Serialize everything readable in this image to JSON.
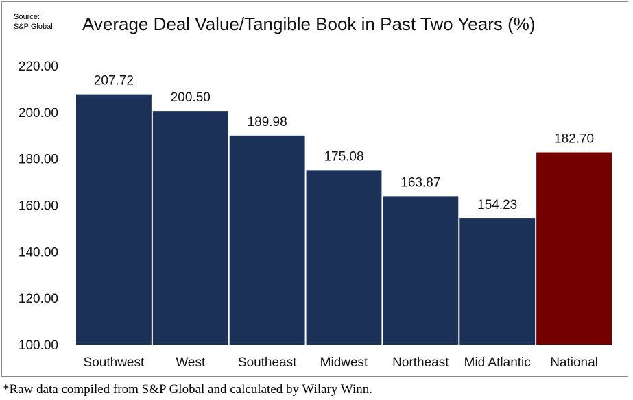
{
  "source": {
    "line1": "Source:",
    "line2": "S&P Global"
  },
  "footnote": "*Raw data compiled from S&P Global and calculated by Wilary Winn.",
  "colors": {
    "regional": "#1b3158",
    "national": "#750000"
  },
  "chart_data": {
    "type": "bar",
    "title": "Average Deal Value/Tangible Book in Past Two Years (%)",
    "xlabel": "",
    "ylabel": "",
    "categories": [
      "Southwest",
      "West",
      "Southeast",
      "Midwest",
      "Northeast",
      "Mid Atlantic",
      "National"
    ],
    "values": [
      207.72,
      200.5,
      189.98,
      175.08,
      163.87,
      154.23,
      182.7
    ],
    "data_labels": [
      "207.72",
      "200.50",
      "189.98",
      "175.08",
      "163.87",
      "154.23",
      "182.70"
    ],
    "highlight": "National",
    "ylim": [
      100,
      220
    ],
    "yticks": [
      100,
      120,
      140,
      160,
      180,
      200,
      220
    ],
    "ytick_labels": [
      "100.00",
      "120.00",
      "140.00",
      "160.00",
      "180.00",
      "200.00",
      "220.00"
    ],
    "grid": false,
    "legend": "none"
  }
}
